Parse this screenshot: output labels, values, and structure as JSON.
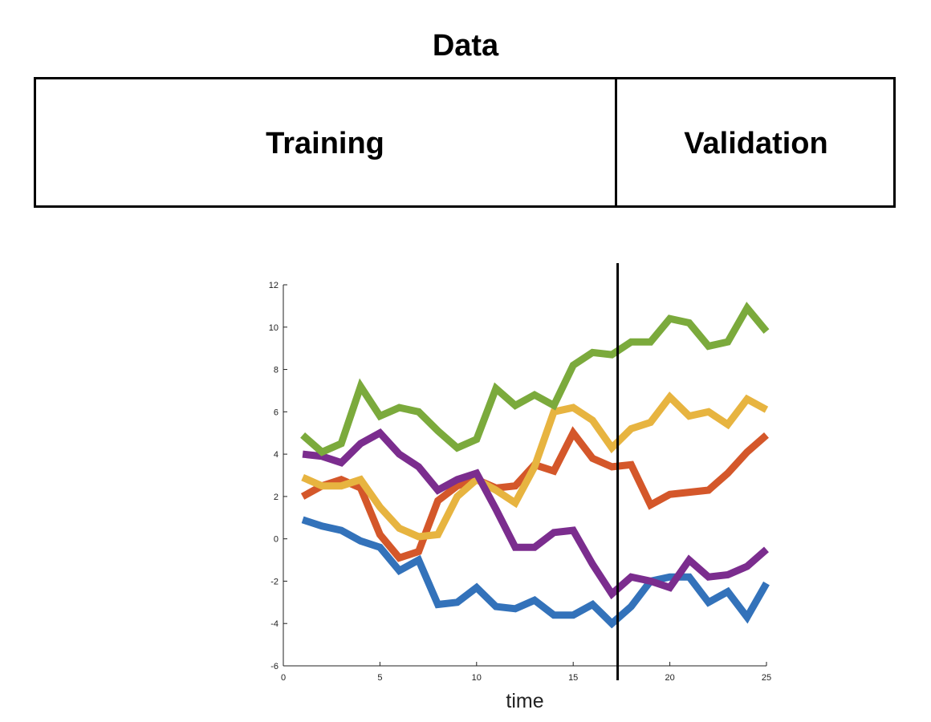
{
  "header": {
    "title": "Data",
    "segments": [
      {
        "label": "Training"
      },
      {
        "label": "Validation"
      }
    ]
  },
  "chart_data": {
    "type": "line",
    "title": "",
    "xlabel": "time",
    "ylabel": "",
    "xlim": [
      0,
      25
    ],
    "ylim": [
      -6,
      12
    ],
    "xticks": [
      0,
      5,
      10,
      15,
      20,
      25
    ],
    "yticks": [
      -6,
      -4,
      -2,
      0,
      2,
      4,
      6,
      8,
      10,
      12
    ],
    "split_at_x": 17.3,
    "x": [
      1,
      2,
      3,
      4,
      5,
      6,
      7,
      8,
      9,
      10,
      11,
      12,
      13,
      14,
      15,
      16,
      17,
      18,
      19,
      20,
      21,
      22,
      23,
      24,
      25
    ],
    "series": [
      {
        "color": "#3372BA",
        "values": [
          0.9,
          0.6,
          0.4,
          -0.1,
          -0.4,
          -1.5,
          -1.0,
          -3.1,
          -3.0,
          -2.3,
          -3.2,
          -3.3,
          -2.9,
          -3.6,
          -3.6,
          -3.1,
          -4.0,
          -3.2,
          -2.0,
          -1.8,
          -1.8,
          -3.0,
          -2.5,
          -3.7,
          -2.1
        ]
      },
      {
        "color": "#D4572A",
        "values": [
          2.0,
          2.5,
          2.8,
          2.4,
          0.2,
          -0.9,
          -0.6,
          1.8,
          2.5,
          2.8,
          2.4,
          2.5,
          3.5,
          3.2,
          5.0,
          3.8,
          3.4,
          3.5,
          1.6,
          2.1,
          2.2,
          2.3,
          3.1,
          4.1,
          4.9
        ]
      },
      {
        "color": "#E7B440",
        "values": [
          2.9,
          2.5,
          2.5,
          2.8,
          1.5,
          0.5,
          0.1,
          0.2,
          2.0,
          2.8,
          2.3,
          1.7,
          3.4,
          6.0,
          6.2,
          5.6,
          4.3,
          5.2,
          5.5,
          6.7,
          5.8,
          6.0,
          5.4,
          6.6,
          6.1
        ]
      },
      {
        "color": "#7B2D8E",
        "values": [
          4.0,
          3.9,
          3.6,
          4.5,
          5.0,
          4.0,
          3.4,
          2.3,
          2.8,
          3.1,
          1.4,
          -0.4,
          -0.4,
          0.3,
          0.4,
          -1.2,
          -2.6,
          -1.8,
          -2.0,
          -2.3,
          -1.0,
          -1.8,
          -1.7,
          -1.3,
          -0.5
        ]
      },
      {
        "color": "#7BAA3C",
        "values": [
          4.9,
          4.1,
          4.5,
          7.2,
          5.8,
          6.2,
          6.0,
          5.1,
          4.3,
          4.7,
          7.1,
          6.3,
          6.8,
          6.3,
          8.2,
          8.8,
          8.7,
          9.3,
          9.3,
          10.4,
          10.2,
          9.1,
          9.3,
          10.9,
          9.8
        ]
      }
    ]
  }
}
